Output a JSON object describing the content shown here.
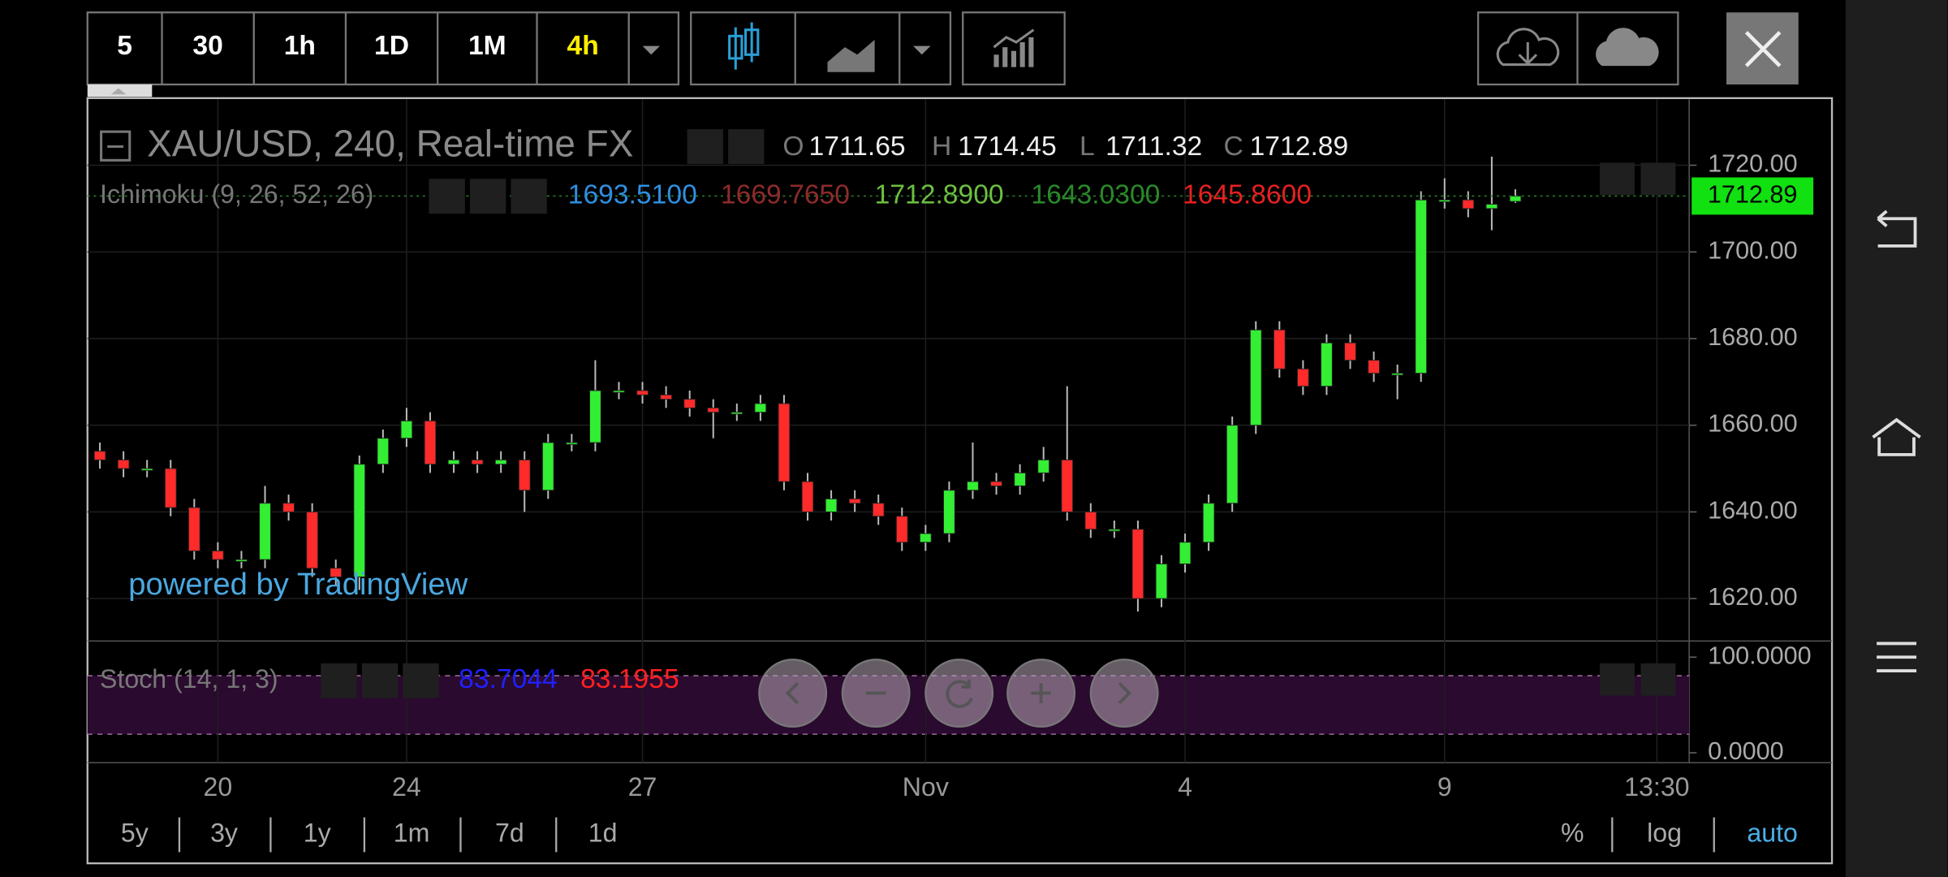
{
  "toolbar": {
    "intervals": [
      "5",
      "30",
      "1h",
      "1D",
      "1M",
      "4h"
    ],
    "active_index": 5,
    "active_color": "#ffee00"
  },
  "chart_data": {
    "type": "candlestick",
    "title": "XAU/USD, 240, Real-time FX",
    "ohlc": [
      {
        "label": "O",
        "value": "1711.65"
      },
      {
        "label": "H",
        "value": "1714.45"
      },
      {
        "label": "L",
        "value": "1711.32"
      },
      {
        "label": "C",
        "value": "1712.89"
      }
    ],
    "categories": [
      null,
      null,
      null,
      null,
      null,
      "20",
      null,
      null,
      null,
      null,
      null,
      null,
      null,
      "24",
      null,
      null,
      null,
      null,
      null,
      null,
      null,
      null,
      null,
      "27",
      null,
      null,
      null,
      null,
      null,
      null,
      null,
      null,
      null,
      null,
      null,
      "Nov",
      null,
      null,
      null,
      null,
      null,
      null,
      null,
      null,
      null,
      null,
      "4",
      null,
      null,
      null,
      null,
      null,
      null,
      null,
      null,
      null,
      null,
      "9",
      null,
      null,
      null,
      null,
      null,
      null,
      null,
      null,
      "13:30"
    ],
    "open": [
      1654,
      1652,
      1650,
      1650,
      1641,
      1631,
      1629,
      1629,
      1642,
      1640,
      1627,
      1625,
      1651,
      1657,
      1661,
      1651,
      1652,
      1651,
      1652,
      1645,
      1656,
      1656,
      1668,
      1668,
      1667,
      1666,
      1664,
      1663,
      1663,
      1665,
      1647,
      1640,
      1643,
      1642,
      1639,
      1633,
      1635,
      1645,
      1647,
      1646,
      1649,
      1652,
      1640,
      1636,
      1636,
      1620,
      1628,
      1633,
      1642,
      1660,
      1682,
      1673,
      1669,
      1679,
      1675,
      1672,
      1672,
      1712,
      1712,
      1710,
      1711.65,
      null,
      null,
      null,
      null,
      null,
      null
    ],
    "high": [
      1656,
      1654,
      1652,
      1652,
      1643,
      1633,
      1631,
      1646,
      1644,
      1642,
      1629,
      1653,
      1659,
      1664,
      1663,
      1654,
      1654,
      1654,
      1654,
      1658,
      1658,
      1675,
      1670,
      1670,
      1669,
      1668,
      1666,
      1665,
      1667,
      1667,
      1649,
      1645,
      1645,
      1644,
      1641,
      1637,
      1647,
      1656,
      1649,
      1651,
      1655,
      1669,
      1642,
      1638,
      1638,
      1630,
      1635,
      1644,
      1662,
      1684,
      1684,
      1675,
      1681,
      1681,
      1677,
      1674,
      1714,
      1717,
      1714,
      1722,
      1714.45,
      null,
      null,
      null,
      null,
      null,
      null
    ],
    "low": [
      1650,
      1648,
      1648,
      1639,
      1629,
      1627,
      1627,
      1627,
      1638,
      1625,
      1623,
      1622,
      1649,
      1655,
      1649,
      1649,
      1649,
      1649,
      1640,
      1643,
      1654,
      1654,
      1666,
      1665,
      1664,
      1662,
      1657,
      1661,
      1661,
      1645,
      1638,
      1638,
      1640,
      1637,
      1631,
      1631,
      1633,
      1643,
      1644,
      1644,
      1647,
      1638,
      1634,
      1634,
      1617,
      1618,
      1626,
      1631,
      1640,
      1658,
      1671,
      1667,
      1667,
      1673,
      1670,
      1666,
      1670,
      1710,
      1708,
      1705,
      1711.32,
      null,
      null,
      null,
      null,
      null,
      null
    ],
    "close": [
      1652,
      1650,
      1650,
      1641,
      1631,
      1629,
      1629,
      1642,
      1640,
      1627,
      1625,
      1651,
      1657,
      1661,
      1651,
      1652,
      1651,
      1652,
      1645,
      1656,
      1656,
      1668,
      1668,
      1667,
      1666,
      1664,
      1663,
      1663,
      1665,
      1647,
      1640,
      1643,
      1642,
      1639,
      1633,
      1635,
      1645,
      1647,
      1646,
      1649,
      1652,
      1640,
      1636,
      1636,
      1620,
      1628,
      1633,
      1642,
      1660,
      1682,
      1673,
      1669,
      1679,
      1675,
      1672,
      1672,
      1712,
      1712,
      1710,
      1711,
      1712.89,
      null,
      null,
      null,
      null,
      null,
      null
    ],
    "up_color": "#33ee33",
    "down_color": "#ff2a2a",
    "ylim": [
      1610.5,
      1735.2
    ],
    "yticks": [
      {
        "value": 1620,
        "label": "1620.00"
      },
      {
        "value": 1640,
        "label": "1640.00"
      },
      {
        "value": 1660,
        "label": "1660.00"
      },
      {
        "value": 1680,
        "label": "1680.00"
      },
      {
        "value": 1700,
        "label": "1700.00"
      },
      {
        "value": 1720,
        "label": "1720.00"
      }
    ],
    "last_price": 1712.89,
    "grid": true
  },
  "ichimoku": {
    "title": "Ichimoku (9, 26, 52, 26)",
    "values": [
      {
        "text": "1693.5100",
        "color": "#2f8fe0"
      },
      {
        "text": "1669.7650",
        "color": "#8e2b2b"
      },
      {
        "text": "1712.8900",
        "color": "#6cc040"
      },
      {
        "text": "1643.0300",
        "color": "#2a8a2a"
      },
      {
        "text": "1645.8600",
        "color": "#e82020"
      }
    ]
  },
  "stoch": {
    "title": "Stoch (14, 1, 3)",
    "values": [
      {
        "text": "83.7044",
        "color": "#2020ff"
      },
      {
        "text": "83.1955",
        "color": "#ff2020"
      }
    ],
    "ylim": [
      -7.8,
      115.6
    ],
    "yticks": [
      {
        "value": 0,
        "label": "0.0000"
      },
      {
        "value": 100,
        "label": "100.0000"
      }
    ]
  },
  "watermark": "powered by TradingView",
  "ranges": [
    "5y",
    "3y",
    "1y",
    "1m",
    "7d",
    "1d"
  ],
  "scale_options": [
    "%",
    "log",
    "auto"
  ],
  "active_scale_index": 2,
  "active_scale_color": "#4ab0e8"
}
